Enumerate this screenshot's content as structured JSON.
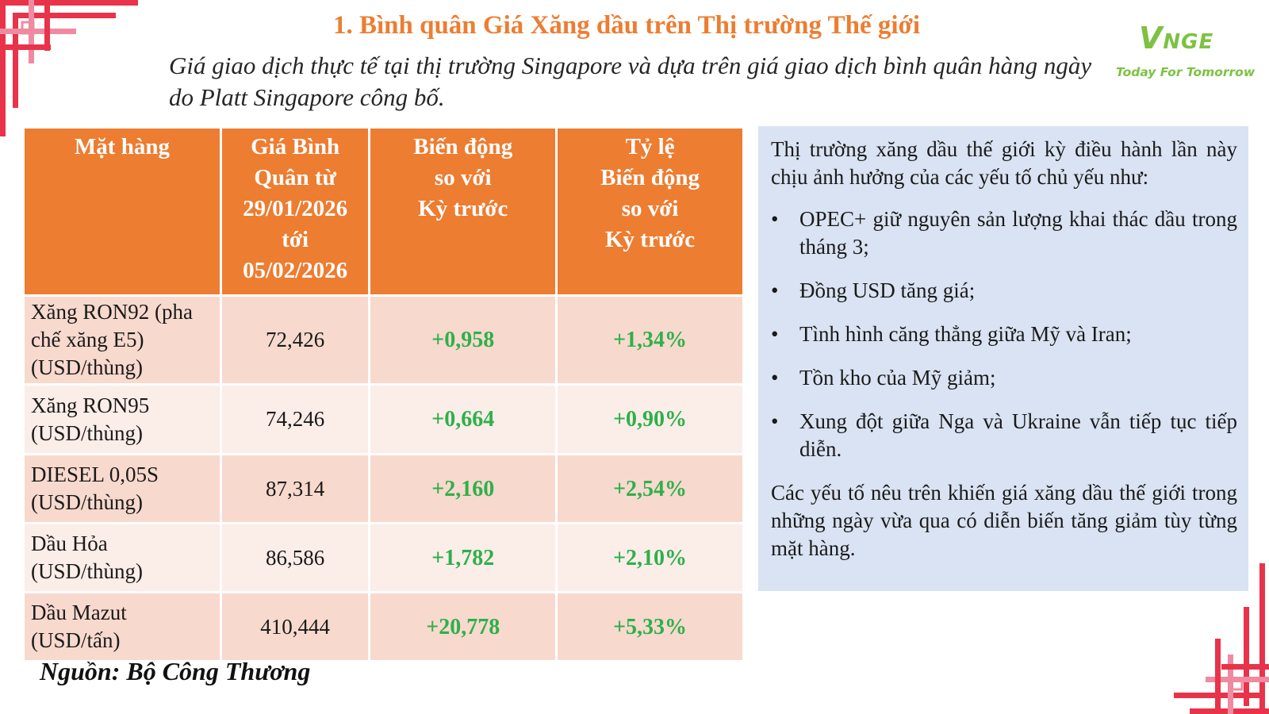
{
  "header": {
    "title": "1. Bình quân Giá Xăng dầu trên Thị trường Thế giới",
    "subtitle": "Giá giao dịch thực tế tại thị trường Singapore và dựa trên giá giao dịch bình quân hàng ngày do Platt Singapore công bố."
  },
  "logo": {
    "mark_v": "V",
    "mark_rest": "NGE",
    "tagline": "Today For Tomorrow"
  },
  "table": {
    "headers": [
      [
        "Mặt hàng"
      ],
      [
        "Giá Bình",
        "Quân từ",
        "29/01/2026",
        "tới",
        "05/02/2026"
      ],
      [
        "Biến động",
        "so với",
        "Kỳ trước"
      ],
      [
        "Tỷ lệ",
        "Biến động",
        "so với",
        "Kỳ trước"
      ]
    ],
    "rows": [
      {
        "product_lines": [
          "Xăng RON92 (pha",
          "chế xăng E5)",
          "(USD/thùng)"
        ],
        "price": "72,426",
        "change": "+0,958",
        "pct": "+1,34%"
      },
      {
        "product_lines": [
          "Xăng RON95",
          "(USD/thùng)"
        ],
        "price": "74,246",
        "change": "+0,664",
        "pct": "+0,90%"
      },
      {
        "product_lines": [
          "DIESEL 0,05S",
          "(USD/thùng)"
        ],
        "price": "87,314",
        "change": "+2,160",
        "pct": "+2,54%"
      },
      {
        "product_lines": [
          "Dầu Hỏa",
          "(USD/thùng)"
        ],
        "price": "86,586",
        "change": "+1,782",
        "pct": "+2,10%"
      },
      {
        "product_lines": [
          "Dầu Mazut",
          "(USD/tấn)"
        ],
        "price": "410,444",
        "change": "+20,778",
        "pct": "+5,33%"
      }
    ]
  },
  "source": "Nguồn: Bộ Công Thương",
  "notes": {
    "intro": "Thị trường xăng dầu thế giới kỳ điều hành lần này chịu ảnh hưởng của các yếu tố chủ yếu như:",
    "bullet_char": "•",
    "bullets": [
      "OPEC+ giữ nguyên sản lượng khai thác dầu trong tháng 3;",
      "Đồng USD tăng giá;",
      "Tình hình căng thẳng giữa Mỹ và Iran;",
      "Tồn kho của Mỹ giảm;",
      "Xung đột giữa Nga và Ukraine vẫn tiếp tục tiếp diễn."
    ],
    "conclusion": "Các yếu tố nêu trên khiến giá xăng dầu thế giới trong những ngày vừa qua có diễn biến tăng giảm tùy từng mặt hàng."
  },
  "colors": {
    "accent_orange": "#ED7D31",
    "row_dark": "#F8D9CE",
    "row_light": "#FBEDE8",
    "change_green": "#2EB04B",
    "note_bg": "#DAE3F3",
    "logo_green": "#7DC242",
    "deco_red": "#E8334A",
    "deco_pink": "#F08AA0"
  }
}
